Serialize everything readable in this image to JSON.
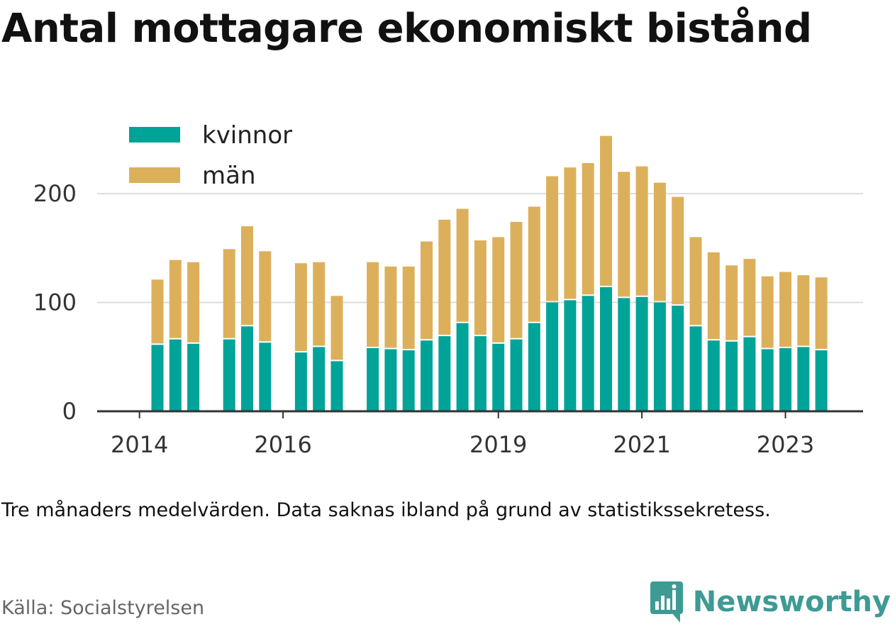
{
  "title": "Antal mottagare ekonomiskt bistånd",
  "note": "Tre månaders medelvärden. Data saknas ibland på grund av statistikssekretess.",
  "source": "Källa: Socialstyrelsen",
  "brand": {
    "name": "Newsworthy",
    "icon": "newsworthy-chart-logo-icon",
    "color": "#3d9b94"
  },
  "colors": {
    "kvinnor": "#00a398",
    "man": "#dcb05b",
    "gridline": "#dddddd",
    "axis": "#333333"
  },
  "chart_data": {
    "type": "bar",
    "stacked": true,
    "x_unit": "quarter",
    "x_ticks": [
      "2014",
      "2016",
      "2019",
      "2021",
      "2023"
    ],
    "ylim": [
      0,
      250
    ],
    "y_ticks": [
      0,
      100,
      200
    ],
    "grid": true,
    "legend_position": "top-left",
    "series": [
      {
        "name": "kvinnor",
        "color": "#00a398"
      },
      {
        "name": "män",
        "color": "#dcb05b"
      }
    ],
    "data": [
      {
        "x": "2014-Q2",
        "kvinnor": 61,
        "man": 60
      },
      {
        "x": "2014-Q3",
        "kvinnor": 66,
        "man": 73
      },
      {
        "x": "2014-Q4",
        "kvinnor": 62,
        "man": 75
      },
      {
        "x": "2015-Q1",
        "kvinnor": null,
        "man": null
      },
      {
        "x": "2015-Q2",
        "kvinnor": 66,
        "man": 83
      },
      {
        "x": "2015-Q3",
        "kvinnor": 78,
        "man": 92
      },
      {
        "x": "2015-Q4",
        "kvinnor": 63,
        "man": 84
      },
      {
        "x": "2016-Q1",
        "kvinnor": null,
        "man": null
      },
      {
        "x": "2016-Q2",
        "kvinnor": 54,
        "man": 82
      },
      {
        "x": "2016-Q3",
        "kvinnor": 59,
        "man": 78
      },
      {
        "x": "2016-Q4",
        "kvinnor": 46,
        "man": 60
      },
      {
        "x": "2017-Q1",
        "kvinnor": null,
        "man": null
      },
      {
        "x": "2017-Q2",
        "kvinnor": 58,
        "man": 79
      },
      {
        "x": "2017-Q3",
        "kvinnor": 57,
        "man": 76
      },
      {
        "x": "2017-Q4",
        "kvinnor": 56,
        "man": 77
      },
      {
        "x": "2018-Q1",
        "kvinnor": 65,
        "man": 91
      },
      {
        "x": "2018-Q2",
        "kvinnor": 69,
        "man": 107
      },
      {
        "x": "2018-Q3",
        "kvinnor": 81,
        "man": 105
      },
      {
        "x": "2018-Q4",
        "kvinnor": 69,
        "man": 88
      },
      {
        "x": "2019-Q1",
        "kvinnor": 62,
        "man": 98
      },
      {
        "x": "2019-Q2",
        "kvinnor": 66,
        "man": 108
      },
      {
        "x": "2019-Q3",
        "kvinnor": 81,
        "man": 107
      },
      {
        "x": "2019-Q4",
        "kvinnor": 100,
        "man": 116
      },
      {
        "x": "2020-Q1",
        "kvinnor": 102,
        "man": 122
      },
      {
        "x": "2020-Q2",
        "kvinnor": 106,
        "man": 122
      },
      {
        "x": "2020-Q3",
        "kvinnor": 114,
        "man": 139
      },
      {
        "x": "2020-Q4",
        "kvinnor": 104,
        "man": 116
      },
      {
        "x": "2021-Q1",
        "kvinnor": 105,
        "man": 120
      },
      {
        "x": "2021-Q2",
        "kvinnor": 100,
        "man": 110
      },
      {
        "x": "2021-Q3",
        "kvinnor": 97,
        "man": 100
      },
      {
        "x": "2021-Q4",
        "kvinnor": 78,
        "man": 82
      },
      {
        "x": "2022-Q1",
        "kvinnor": 65,
        "man": 81
      },
      {
        "x": "2022-Q2",
        "kvinnor": 64,
        "man": 70
      },
      {
        "x": "2022-Q3",
        "kvinnor": 68,
        "man": 72
      },
      {
        "x": "2022-Q4",
        "kvinnor": 57,
        "man": 67
      },
      {
        "x": "2023-Q1",
        "kvinnor": 58,
        "man": 70
      },
      {
        "x": "2023-Q2",
        "kvinnor": 59,
        "man": 66
      },
      {
        "x": "2023-Q3",
        "kvinnor": 56,
        "man": 67
      }
    ]
  }
}
